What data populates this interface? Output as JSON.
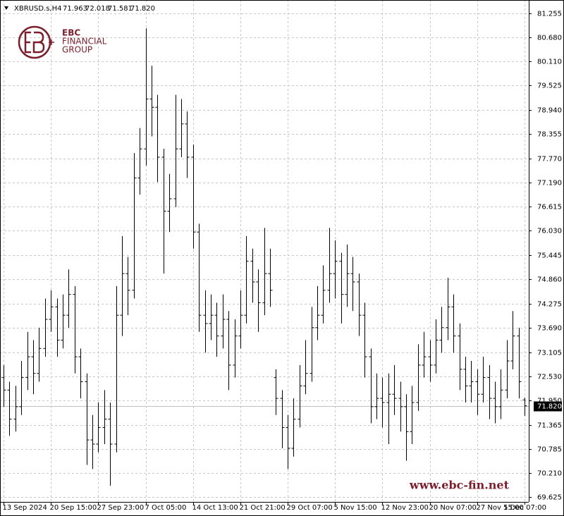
{
  "chart_data": {
    "type": "ohlc",
    "symbol": "XBRUSD.s,H4",
    "header_values": [
      "71.963",
      "72.018",
      "71.581",
      "71.820"
    ],
    "brand": [
      "EBC",
      "FINANCIAL",
      "GROUP"
    ],
    "website": "www.ebc-fin.net",
    "color": "#000000",
    "grid": true,
    "categories": [
      "13 Sep 2024",
      null,
      null,
      null,
      null,
      null,
      null,
      null,
      "20 Sep 15:00",
      null,
      null,
      null,
      null,
      null,
      null,
      null,
      "27 Sep 23:00",
      null,
      null,
      null,
      null,
      null,
      null,
      null,
      "7 Oct 05:00",
      null,
      null,
      null,
      null,
      null,
      null,
      null,
      "14 Oct 13:00",
      null,
      null,
      null,
      null,
      null,
      null,
      null,
      "21 Oct 21:00",
      null,
      null,
      null,
      null,
      null,
      null,
      null,
      "29 Oct 07:00",
      null,
      null,
      null,
      null,
      null,
      null,
      null,
      "5 Nov 15:00",
      null,
      null,
      null,
      null,
      null,
      null,
      null,
      "12 Nov 23:00",
      null,
      null,
      null,
      null,
      null,
      null,
      null,
      "20 Nov 07:00",
      null,
      null,
      null,
      null,
      null,
      null,
      null,
      "27 Nov 15:00",
      null,
      null,
      null,
      null,
      null,
      null,
      null,
      "5 Dec 07:00"
    ],
    "open": [
      72.5,
      72.2,
      71.5,
      71.8,
      72.5,
      73.0,
      72.6,
      73.2,
      73.9,
      74.2,
      73.4,
      74.0,
      74.5,
      73.0,
      72.4,
      71.0,
      70.9,
      71.3,
      71.5,
      70.9,
      74.0,
      75.0,
      74.6,
      77.3,
      78.0,
      79.2,
      79.0,
      77.8,
      76.5,
      76.8,
      78.0,
      78.6,
      77.8,
      76.0,
      74.0,
      73.8,
      74.0,
      73.5,
      73.9,
      72.8,
      73.5,
      74.0,
      75.3,
      74.8,
      74.3,
      75.0,
      72.5,
      72.0,
      71.3,
      70.8,
      71.5,
      72.3,
      72.6,
      73.7,
      74.0,
      74.6,
      75.0,
      75.3,
      74.5,
      75.0,
      74.8,
      74.0,
      73.0,
      71.8,
      72.0,
      71.9,
      72.1,
      72.0,
      71.8,
      71.2,
      71.9,
      72.8,
      73.0,
      72.8,
      73.4,
      73.7,
      74.2,
      73.5,
      72.7,
      72.3,
      72.4,
      72.1,
      72.5,
      72.0,
      71.8,
      72.2,
      72.9,
      73.5,
      71.963
    ],
    "high": [
      72.8,
      72.4,
      72.3,
      72.9,
      73.6,
      73.4,
      73.7,
      74.4,
      74.6,
      74.4,
      74.5,
      75.1,
      74.7,
      73.2,
      72.6,
      71.6,
      71.9,
      72.2,
      71.9,
      74.7,
      75.9,
      75.4,
      77.9,
      78.5,
      80.9,
      80.0,
      79.3,
      78.0,
      77.4,
      79.3,
      79.2,
      78.9,
      78.1,
      76.2,
      74.6,
      74.5,
      74.3,
      74.5,
      74.1,
      73.9,
      74.6,
      75.9,
      75.6,
      75.1,
      76.1,
      75.6,
      72.7,
      72.2,
      71.6,
      72.0,
      72.8,
      73.4,
      74.2,
      74.7,
      75.2,
      76.1,
      75.8,
      75.5,
      75.7,
      75.4,
      75.0,
      74.3,
      73.2,
      72.6,
      72.5,
      72.6,
      72.8,
      72.4,
      72.1,
      72.3,
      73.3,
      73.6,
      73.4,
      73.9,
      74.2,
      74.9,
      74.5,
      73.8,
      73.0,
      72.9,
      72.7,
      73.0,
      72.8,
      72.4,
      72.7,
      73.4,
      74.1,
      73.7,
      72.018
    ],
    "low": [
      71.8,
      71.1,
      71.2,
      71.6,
      72.2,
      72.1,
      72.4,
      73.0,
      73.6,
      73.0,
      73.2,
      73.7,
      72.6,
      72.0,
      70.4,
      70.3,
      70.7,
      70.9,
      69.9,
      70.7,
      73.5,
      74.0,
      74.4,
      76.9,
      77.6,
      78.3,
      77.2,
      75.0,
      76.0,
      76.6,
      77.8,
      77.3,
      75.6,
      73.6,
      73.1,
      73.4,
      73.0,
      73.2,
      72.2,
      72.5,
      73.2,
      73.8,
      74.3,
      73.6,
      74.0,
      74.2,
      71.6,
      70.8,
      70.3,
      70.6,
      71.3,
      72.1,
      72.4,
      73.4,
      73.8,
      74.3,
      74.4,
      73.8,
      74.2,
      74.1,
      73.5,
      72.5,
      71.4,
      71.5,
      71.3,
      70.9,
      71.6,
      71.2,
      70.5,
      70.9,
      71.7,
      72.5,
      72.4,
      72.6,
      73.1,
      73.4,
      73.1,
      72.2,
      71.9,
      71.9,
      71.6,
      71.9,
      71.5,
      71.4,
      71.5,
      72.0,
      72.7,
      72.0,
      71.581
    ],
    "close": [
      72.2,
      71.5,
      71.8,
      72.5,
      73.0,
      72.6,
      73.2,
      73.9,
      74.2,
      73.4,
      74.0,
      74.5,
      73.0,
      72.4,
      71.0,
      70.9,
      71.3,
      71.5,
      70.9,
      74.0,
      75.0,
      74.6,
      77.3,
      78.0,
      79.2,
      79.0,
      77.8,
      76.5,
      76.8,
      78.0,
      78.6,
      77.8,
      76.0,
      74.0,
      73.8,
      74.0,
      73.5,
      73.9,
      72.8,
      73.5,
      74.0,
      75.3,
      74.8,
      74.3,
      75.0,
      74.6,
      72.0,
      71.3,
      70.8,
      71.5,
      72.3,
      72.6,
      73.7,
      74.0,
      74.6,
      75.0,
      75.3,
      74.5,
      75.0,
      74.8,
      74.0,
      73.0,
      71.8,
      72.0,
      71.9,
      72.1,
      72.0,
      71.8,
      71.2,
      71.9,
      72.8,
      73.0,
      72.8,
      73.4,
      73.7,
      74.2,
      73.5,
      72.7,
      72.3,
      72.4,
      72.1,
      72.5,
      72.0,
      71.8,
      72.2,
      72.9,
      73.5,
      72.4,
      71.82
    ],
    "last_price": {
      "value": 71.82,
      "label": "71.820"
    },
    "ylim": [
      69.51,
      81.58
    ],
    "yticks": [
      69.625,
      {
        "value": 70.21,
        "label": "70.210"
      },
      70.785,
      71.365,
      {
        "value": 71.95,
        "label": "71.950"
      },
      {
        "value": 72.53,
        "label": "72.530"
      },
      73.105,
      {
        "value": 73.69,
        "label": "73.690"
      },
      74.275,
      {
        "value": 74.86,
        "label": "74.860"
      },
      75.445,
      {
        "value": 76.03,
        "label": "76.030"
      },
      76.615,
      {
        "value": 77.19,
        "label": "77.190"
      },
      {
        "value": 77.77,
        "label": "77.770"
      },
      78.355,
      {
        "value": 78.94,
        "label": "78.940"
      },
      79.525,
      {
        "value": 80.11,
        "label": "80.110"
      },
      {
        "value": 80.68,
        "label": "80.680"
      },
      81.255
    ]
  }
}
